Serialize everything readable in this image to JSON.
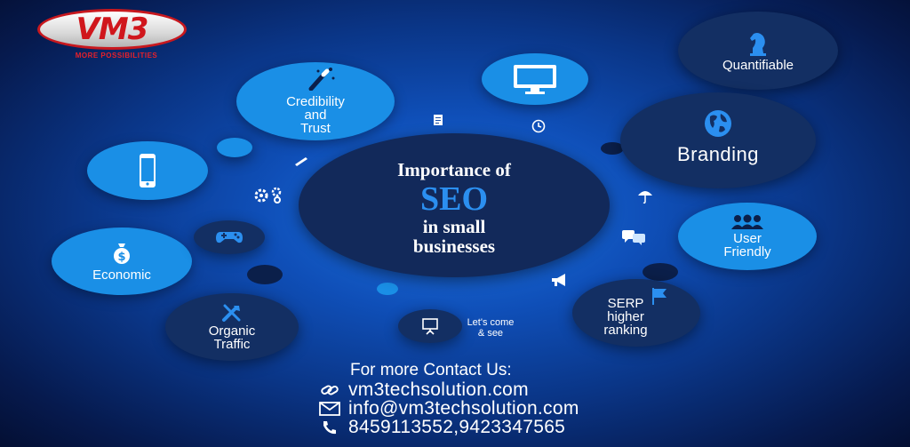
{
  "logo": {
    "brand": "VM3",
    "tagline": "MORE POSSIBILITIES"
  },
  "center": {
    "line1": "Importance of",
    "line2": "SEO",
    "line3": "in small",
    "line4": "businesses"
  },
  "bubbles": {
    "credibility": "Credibility\nand\nTrust",
    "quantifiable": "Quantifiable",
    "branding": "Branding",
    "user_friendly": "User\nFriendly",
    "economic": "Economic",
    "serp": "SERP\nhigher\nranking",
    "organic": "Organic\nTraffic",
    "lets_come": "Let's come\n& see"
  },
  "contact": {
    "heading": "For more Contact Us:",
    "website": "vm3techsolution.com",
    "email": "info@vm3techsolution.com",
    "phone": "8459113552,9423347565"
  },
  "icons": [
    "wand-icon",
    "monitor-icon",
    "document-icon",
    "clock-icon",
    "chess-knight-icon",
    "globe-icon",
    "mobile-phone-icon",
    "pencil-icon",
    "gears-icon",
    "umbrella-icon",
    "chat-icon",
    "users-icon",
    "money-bag-icon",
    "gamepad-icon",
    "megaphone-icon",
    "flag-icon",
    "tools-icon",
    "presentation-icon",
    "link-icon",
    "mail-icon",
    "phone-icon"
  ],
  "colors": {
    "accent": "#2b8ff0",
    "light_bubble": "#1a8fe6",
    "dark_bubble": "#132f63",
    "logo_red": "#d0161c"
  }
}
